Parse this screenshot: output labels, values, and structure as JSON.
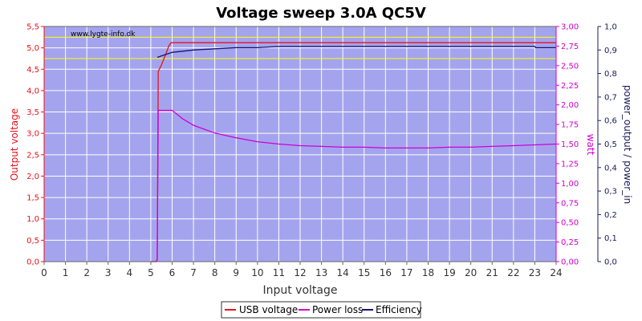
{
  "chart_data": {
    "type": "line",
    "title": "Voltage sweep 3.0A QC5V",
    "watermark": "www.lygte-info.dk",
    "xlabel": "Input voltage",
    "ylabel_left": "Output voltage",
    "ylabel_right1": "watt",
    "ylabel_right2": "power_output / power_in",
    "xlim": [
      0,
      24
    ],
    "ylim_left": [
      0,
      5.5
    ],
    "ylim_right1": [
      0,
      3.0
    ],
    "ylim_right2": [
      0,
      1.0
    ],
    "x_ticks": [
      "0",
      "1",
      "2",
      "3",
      "4",
      "5",
      "6",
      "7",
      "8",
      "9",
      "10",
      "11",
      "12",
      "13",
      "14",
      "15",
      "16",
      "17",
      "18",
      "19",
      "20",
      "21",
      "22",
      "23",
      "24"
    ],
    "y_ticks_left": [
      "0,0",
      "0,5",
      "1,0",
      "1,5",
      "2,0",
      "2,5",
      "3,0",
      "3,5",
      "4,0",
      "4,5",
      "5,0",
      "5,5"
    ],
    "y_ticks_right1": [
      "0,00",
      "0,25",
      "0,50",
      "0,75",
      "1,00",
      "1,25",
      "1,50",
      "1,75",
      "2,00",
      "2,25",
      "2,50",
      "2,75",
      "3,00"
    ],
    "y_ticks_right2": [
      "0,0",
      "0,1",
      "0,2",
      "0,3",
      "0,4",
      "0,5",
      "0,6",
      "0,7",
      "0,8",
      "0,9",
      "1,0"
    ],
    "reference_lines_left": [
      5.25,
      4.75
    ],
    "grid": true,
    "legend_position": "bottom-center",
    "colors": {
      "background": "#a4a4ee",
      "grid": "#ffffff",
      "usb_voltage": "#e8121b",
      "power_loss": "#d000d0",
      "efficiency": "#14146e",
      "reference": "#ffff00"
    },
    "series": [
      {
        "name": "USB voltage",
        "axis": "left",
        "x": [
          5.0,
          5.2,
          5.25,
          5.3,
          5.35,
          5.5,
          5.7,
          5.85,
          5.95,
          6.2,
          8,
          10,
          12,
          14,
          16,
          18,
          20,
          22,
          24
        ],
        "y": [
          0.0,
          0.0,
          0.0,
          0.05,
          4.45,
          4.6,
          4.85,
          5.05,
          5.12,
          5.12,
          5.12,
          5.12,
          5.12,
          5.12,
          5.12,
          5.12,
          5.12,
          5.12,
          5.12
        ]
      },
      {
        "name": "Power loss",
        "axis": "right1",
        "x": [
          5.0,
          5.2,
          5.25,
          5.3,
          5.35,
          5.5,
          6.0,
          6.5,
          7,
          8,
          9,
          10,
          11,
          12,
          13,
          14,
          15,
          16,
          17,
          18,
          19,
          20,
          21,
          22,
          23,
          24
        ],
        "y": [
          0.0,
          0.0,
          0.0,
          0.02,
          1.93,
          1.93,
          1.93,
          1.82,
          1.74,
          1.64,
          1.58,
          1.53,
          1.5,
          1.48,
          1.47,
          1.46,
          1.46,
          1.45,
          1.45,
          1.45,
          1.46,
          1.46,
          1.47,
          1.48,
          1.49,
          1.5
        ]
      },
      {
        "name": "Efficiency",
        "axis": "right2",
        "x": [
          5.3,
          5.35,
          5.5,
          6.0,
          6.5,
          7,
          8,
          9,
          10,
          11,
          12,
          13,
          14,
          15,
          16,
          17,
          18,
          19,
          20,
          21,
          22,
          23,
          23.05,
          24
        ],
        "y": [
          0.87,
          0.87,
          0.875,
          0.89,
          0.895,
          0.9,
          0.905,
          0.91,
          0.91,
          0.915,
          0.915,
          0.915,
          0.915,
          0.915,
          0.915,
          0.915,
          0.915,
          0.915,
          0.915,
          0.915,
          0.915,
          0.915,
          0.91,
          0.91
        ]
      }
    ]
  }
}
